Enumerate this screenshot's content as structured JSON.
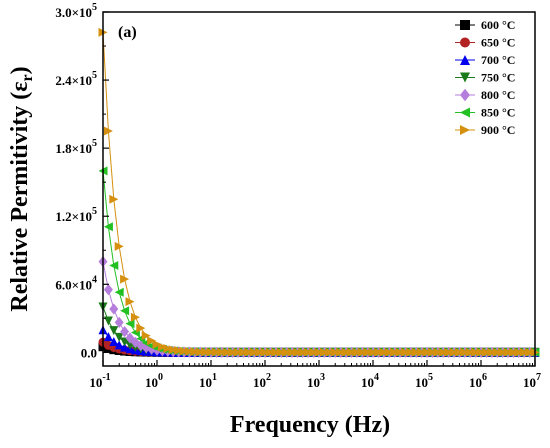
{
  "chart_data": {
    "type": "scatter",
    "panel_label": "(a)",
    "xlabel": "Frequency (Hz)",
    "ylabel_main": "Relative Permitivity (ε",
    "ylabel_sub": "r",
    "ylabel_close": ")",
    "x_scale": "log",
    "xlim": [
      0.1,
      10000000
    ],
    "ylim": [
      -12000,
      300000
    ],
    "x_ticks": [
      {
        "value": 0.1,
        "base": "10",
        "exp": "-1"
      },
      {
        "value": 1,
        "base": "10",
        "exp": "0"
      },
      {
        "value": 10,
        "base": "10",
        "exp": "1"
      },
      {
        "value": 100,
        "base": "10",
        "exp": "2"
      },
      {
        "value": 1000,
        "base": "10",
        "exp": "3"
      },
      {
        "value": 10000,
        "base": "10",
        "exp": "4"
      },
      {
        "value": 100000,
        "base": "10",
        "exp": "5"
      },
      {
        "value": 1000000,
        "base": "10",
        "exp": "6"
      },
      {
        "value": 10000000,
        "base": "10",
        "exp": "7"
      }
    ],
    "y_ticks": [
      {
        "value": 0,
        "text": "0.0"
      },
      {
        "value": 60000,
        "text": "6.0×10",
        "exp": "4"
      },
      {
        "value": 120000,
        "text": "1.2×10",
        "exp": "5"
      },
      {
        "value": 180000,
        "text": "1.8×10",
        "exp": "5"
      },
      {
        "value": 240000,
        "text": "2.4×10",
        "exp": "5"
      },
      {
        "value": 300000,
        "text": "3.0×10",
        "exp": "5"
      }
    ],
    "legend_position": "top-right",
    "grid": false,
    "series": [
      {
        "name": "600 °C",
        "color": "#000000",
        "marker": "square",
        "y0": 5000,
        "alpha": 1.6
      },
      {
        "name": "650 °C",
        "color": "#b22222",
        "marker": "circle",
        "y0": 9000,
        "alpha": 1.6
      },
      {
        "name": "700 °C",
        "color": "#0000ee",
        "marker": "triangle-up",
        "y0": 20000,
        "alpha": 1.6
      },
      {
        "name": "750 °C",
        "color": "#1a7a1a",
        "marker": "triangle-down",
        "y0": 40000,
        "alpha": 1.6
      },
      {
        "name": "800 °C",
        "color": "#b57edc",
        "marker": "diamond",
        "y0": 80000,
        "alpha": 1.6
      },
      {
        "name": "850 °C",
        "color": "#22c022",
        "marker": "triangle-left",
        "y0": 160000,
        "alpha": 1.6
      },
      {
        "name": "900 °C",
        "color": "#d4900e",
        "marker": "triangle-right",
        "y0": 282000,
        "alpha": 1.6
      }
    ]
  }
}
